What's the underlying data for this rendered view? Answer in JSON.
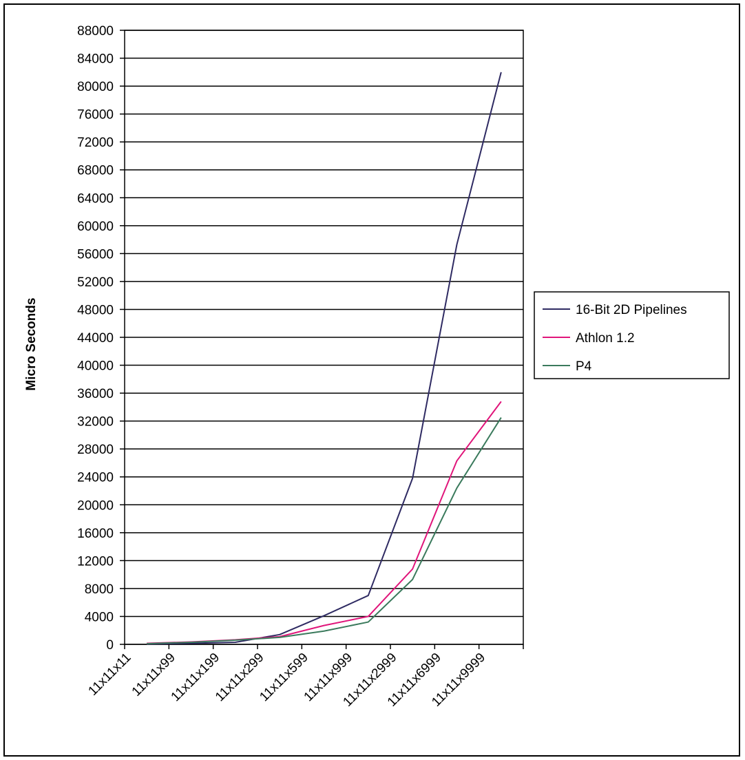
{
  "chart_data": {
    "type": "line",
    "title": "",
    "xlabel": "",
    "ylabel": "Micro Seconds",
    "categories": [
      "11x11x11",
      "11x11x99",
      "11x11x199",
      "11x11x299",
      "11x11x599",
      "11x11x999",
      "11x11x2999",
      "11x11x6999",
      "11x11x9999"
    ],
    "ylim": [
      0,
      88000
    ],
    "yticks": [
      0,
      4000,
      8000,
      12000,
      16000,
      20000,
      24000,
      28000,
      32000,
      36000,
      40000,
      44000,
      48000,
      52000,
      56000,
      60000,
      64000,
      68000,
      72000,
      76000,
      80000,
      84000,
      88000
    ],
    "grid": true,
    "legend_position": "right",
    "series": [
      {
        "name": "16-Bit 2D Pipelines",
        "color": "#2e2a62",
        "values": [
          50,
          150,
          300,
          1400,
          4100,
          7000,
          23800,
          57300,
          82000
        ]
      },
      {
        "name": "Athlon 1.2",
        "color": "#e0157a",
        "values": [
          150,
          350,
          650,
          1100,
          2700,
          4000,
          10800,
          26300,
          34800
        ]
      },
      {
        "name": "P4",
        "color": "#3a7a5c",
        "values": [
          100,
          300,
          600,
          1000,
          1900,
          3200,
          9300,
          22400,
          32500
        ]
      }
    ]
  }
}
